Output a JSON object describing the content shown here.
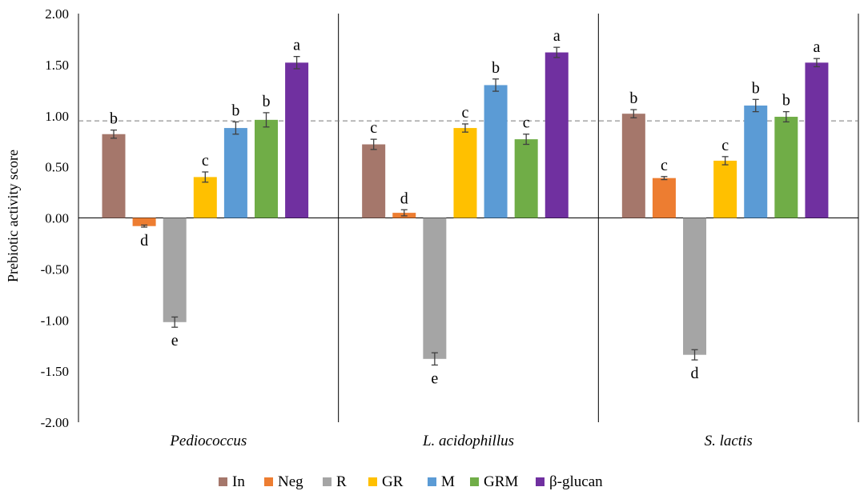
{
  "chart_data": {
    "type": "bar",
    "title": "",
    "xlabel": "",
    "ylabel": "Prebiotic activity score",
    "ylim": [
      -2.0,
      2.0
    ],
    "yticks": [
      2.0,
      1.5,
      1.0,
      0.5,
      0.0,
      -0.5,
      -1.0,
      -1.5,
      -2.0
    ],
    "ytick_labels": [
      "2.00",
      "1.50",
      "1.00",
      "0.50",
      "0.00",
      "-0.50",
      "-1.00",
      "-1.50",
      "-2.00"
    ],
    "reference_line": 0.95,
    "categories": [
      "Pediococcus",
      "L. acidophillus",
      "S. lactis"
    ],
    "series": [
      {
        "name": "In",
        "color": "#A5776B",
        "values": [
          0.82,
          0.72,
          1.02
        ],
        "errors": [
          0.04,
          0.05,
          0.04
        ],
        "labels": [
          "b",
          "c",
          "b"
        ]
      },
      {
        "name": "Neg",
        "color": "#ED7D31",
        "values": [
          -0.08,
          0.05,
          0.39
        ],
        "errors": [
          0.01,
          0.03,
          0.015
        ],
        "labels": [
          "d",
          "d",
          "c"
        ]
      },
      {
        "name": "R",
        "color": "#A5A5A5",
        "values": [
          -1.02,
          -1.38,
          -1.34
        ],
        "errors": [
          0.05,
          0.06,
          0.05
        ],
        "labels": [
          "e",
          "e",
          "d"
        ]
      },
      {
        "name": "GR",
        "color": "#FFC000",
        "values": [
          0.4,
          0.88,
          0.56
        ],
        "errors": [
          0.05,
          0.04,
          0.04
        ],
        "labels": [
          "c",
          "c",
          "c"
        ]
      },
      {
        "name": "M",
        "color": "#5B9BD5",
        "values": [
          0.88,
          1.3,
          1.1
        ],
        "errors": [
          0.06,
          0.06,
          0.06
        ],
        "labels": [
          "b",
          "b",
          "b"
        ]
      },
      {
        "name": "GRM",
        "color": "#70AD47",
        "values": [
          0.96,
          0.77,
          0.99
        ],
        "errors": [
          0.07,
          0.05,
          0.05
        ],
        "labels": [
          "b",
          "c",
          "b"
        ]
      },
      {
        "name": "β-glucan",
        "color": "#7030A0",
        "values": [
          1.52,
          1.62,
          1.52
        ],
        "errors": [
          0.06,
          0.05,
          0.04
        ],
        "labels": [
          "a",
          "a",
          "a"
        ]
      }
    ],
    "legend_position": "bottom"
  }
}
